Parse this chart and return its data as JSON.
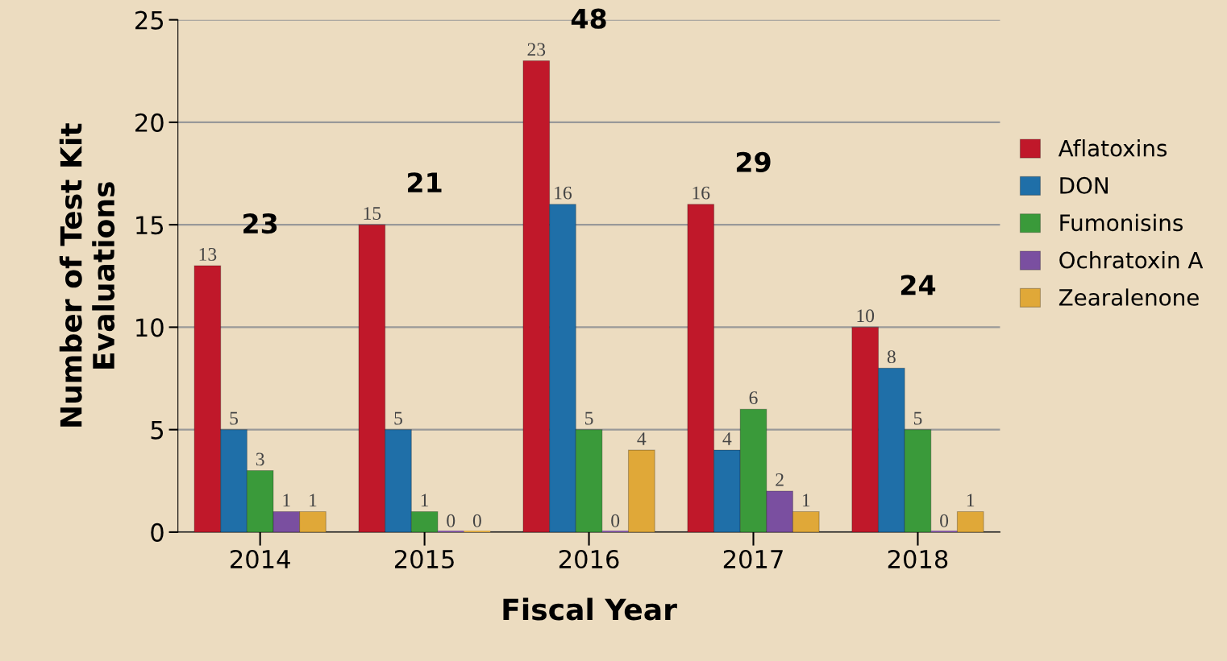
{
  "chart_data": {
    "type": "bar",
    "xlabel": "Fiscal Year",
    "ylabel": "Number of Test Kit\nEvaluations",
    "categories": [
      "2014",
      "2015",
      "2016",
      "2017",
      "2018"
    ],
    "series": [
      {
        "name": "Aflatoxins",
        "color": "#c0182a",
        "values": [
          13,
          15,
          23,
          16,
          10
        ]
      },
      {
        "name": "DON",
        "color": "#1f6fa8",
        "values": [
          5,
          5,
          16,
          4,
          8
        ]
      },
      {
        "name": "Fumonisins",
        "color": "#3a9a3a",
        "values": [
          3,
          1,
          5,
          6,
          5
        ]
      },
      {
        "name": "Ochratoxin A",
        "color": "#7a4fa0",
        "values": [
          1,
          0,
          0,
          2,
          0
        ]
      },
      {
        "name": "Zearalenone",
        "color": "#e0a838",
        "values": [
          1,
          0,
          4,
          1,
          1
        ]
      }
    ],
    "totals": [
      "23",
      "21",
      "48",
      "29",
      "24"
    ],
    "ylim": [
      0,
      25
    ],
    "yticks": [
      0,
      5,
      10,
      15,
      20,
      25
    ],
    "grid": "y",
    "legend": "right",
    "data_labels": true
  }
}
